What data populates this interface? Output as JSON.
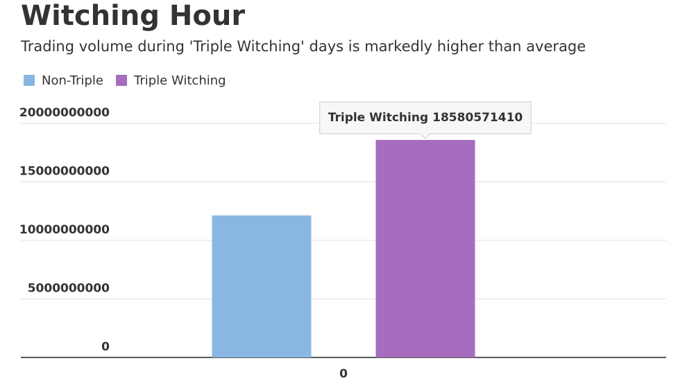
{
  "chart_data": {
    "type": "bar",
    "title": "Witching Hour",
    "subtitle": "Trading volume during 'Triple Witching' days is markedly higher than average",
    "categories": [
      "0"
    ],
    "series": [
      {
        "name": "Non-Triple",
        "color": "#89b7e2",
        "values": [
          12130000000
        ]
      },
      {
        "name": "Triple Witching",
        "color": "#a66dbf",
        "values": [
          18580571410
        ]
      }
    ],
    "ylim": [
      0,
      20000000000
    ],
    "yticks": [
      0,
      5000000000,
      10000000000,
      15000000000,
      20000000000
    ],
    "grid": true,
    "legend": "top-left"
  }
}
